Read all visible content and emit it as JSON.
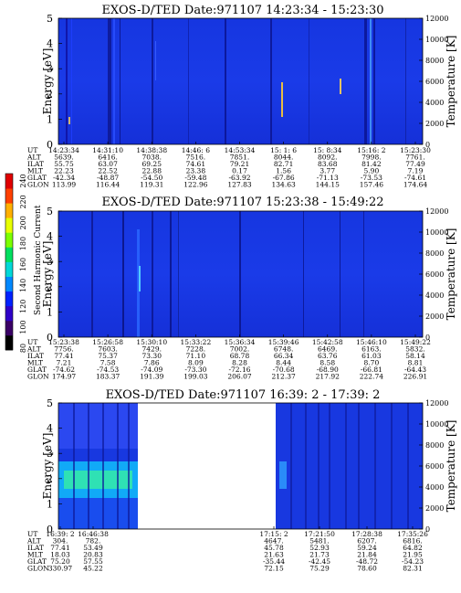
{
  "colorbar": {
    "label": "Second Harmonic Current",
    "ticks": [
      "240",
      "220",
      "200",
      "180",
      "160",
      "140",
      "120",
      "100",
      "80"
    ],
    "colors": [
      "#000000",
      "#3a0066",
      "#2f00c8",
      "#0022ff",
      "#0088ff",
      "#00d8d8",
      "#00e060",
      "#7cff00",
      "#e8ff00",
      "#ffb000",
      "#ff4000",
      "#e00000"
    ]
  },
  "row_labels": [
    "UT",
    "ALT",
    "ILAT",
    "MLT",
    "GLAT",
    "GLON"
  ],
  "chart_data": [
    {
      "type": "heatmap",
      "title": "EXOS-D/TED   Date:971107  14:23:34 - 15:23:30",
      "ylabel": "Energy [eV]",
      "ylabel_right": "Temperature [K]",
      "ylim": [
        0,
        5
      ],
      "yticks": [
        "0",
        "1",
        "2",
        "3",
        "4",
        "5"
      ],
      "ylim_right": [
        0,
        12000
      ],
      "yticks_right": [
        "0",
        "2000",
        "4000",
        "6000",
        "8000",
        "10000",
        "12000"
      ],
      "columns": [
        [
          "14:23:34",
          "5639.",
          "55.75",
          "22.23",
          "-42.34",
          "113.99"
        ],
        [
          "14:31:10",
          "6416.",
          "63.07",
          "22.52",
          "-48.87",
          "116.44"
        ],
        [
          "14:38:38",
          "7038.",
          "69.25",
          "22.88",
          "-54.50",
          "119.31"
        ],
        [
          "14:46: 6",
          "7516.",
          "74.61",
          "23.38",
          "-59.48",
          "122.96"
        ],
        [
          "14:53:34",
          "7851.",
          "79.21",
          "0.17",
          "-63.92",
          "127.83"
        ],
        [
          "15: 1: 6",
          "8044.",
          "82.71",
          "1.56",
          "-67.86",
          "134.63"
        ],
        [
          "15: 8:34",
          "8092.",
          "83.68",
          "3.77",
          "-71.13",
          "144.15"
        ],
        [
          "15:16: 2",
          "7998.",
          "81.42",
          "5.90",
          "-73.53",
          "157.46"
        ],
        [
          "15:23:30",
          "7761.",
          "77.49",
          "7.19",
          "-74.61",
          "174.64"
        ]
      ]
    },
    {
      "type": "heatmap",
      "title": "EXOS-D/TED   Date:971107  15:23:38 - 15:49:22",
      "ylabel": "Energy [eV]",
      "ylabel_right": "Temperature [K]",
      "ylim": [
        0,
        5
      ],
      "yticks": [
        "0",
        "1",
        "2",
        "3",
        "4",
        "5"
      ],
      "ylim_right": [
        0,
        12000
      ],
      "yticks_right": [
        "0",
        "2000",
        "4000",
        "6000",
        "8000",
        "10000",
        "12000"
      ],
      "columns": [
        [
          "15:23:38",
          "7756.",
          "77.41",
          "7.21",
          "-74.62",
          "174.97"
        ],
        [
          "15:26:58",
          "7603.",
          "75.37",
          "7.58",
          "-74.53",
          "183.37"
        ],
        [
          "15:30:10",
          "7429.",
          "73.30",
          "7.86",
          "-74.09",
          "191.39"
        ],
        [
          "15:33:22",
          "7228.",
          "71.10",
          "8.09",
          "-73.30",
          "199.03"
        ],
        [
          "15:36:34",
          "7002.",
          "68.78",
          "8.28",
          "-72.16",
          "206.07"
        ],
        [
          "15:39:46",
          "6748.",
          "66.34",
          "8.44",
          "-70.68",
          "212.37"
        ],
        [
          "15:42:58",
          "6469.",
          "63.76",
          "8.58",
          "-68.90",
          "217.92"
        ],
        [
          "15:46:10",
          "6163.",
          "61.03",
          "8.70",
          "-66.81",
          "222.74"
        ],
        [
          "15:49:22",
          "5832.",
          "58.14",
          "8.81",
          "-64.43",
          "226.91"
        ]
      ]
    },
    {
      "type": "heatmap",
      "title": "EXOS-D/TED   Date:971107  16:39: 2 - 17:39: 2",
      "ylabel": "Energy [eV]",
      "ylabel_right": "Temperature [K]",
      "ylim": [
        0,
        5
      ],
      "yticks": [
        "0",
        "1",
        "2",
        "3",
        "4",
        "5"
      ],
      "ylim_right": [
        0,
        12000
      ],
      "yticks_right": [
        "0",
        "2000",
        "4000",
        "6000",
        "8000",
        "10000",
        "12000"
      ],
      "columns": [
        [
          "16:39: 2",
          "304.",
          "77.41",
          "18.03",
          "75.20",
          "330.97"
        ],
        [
          "16:46:38",
          "782.",
          "53.49",
          "20.83",
          "57.55",
          "45.22"
        ],
        [
          "17:15: 2",
          "4647.",
          "45.78",
          "21.63",
          "-35.44",
          "72.15"
        ],
        [
          "17:21:50",
          "5481.",
          "52.93",
          "21.73",
          "-42.45",
          "75.29"
        ],
        [
          "17:28:38",
          "6207.",
          "59.24",
          "21.84",
          "-48.72",
          "78.60"
        ],
        [
          "17:35:26",
          "6816.",
          "64.82",
          "21.95",
          "-54.23",
          "82.31"
        ]
      ]
    }
  ]
}
